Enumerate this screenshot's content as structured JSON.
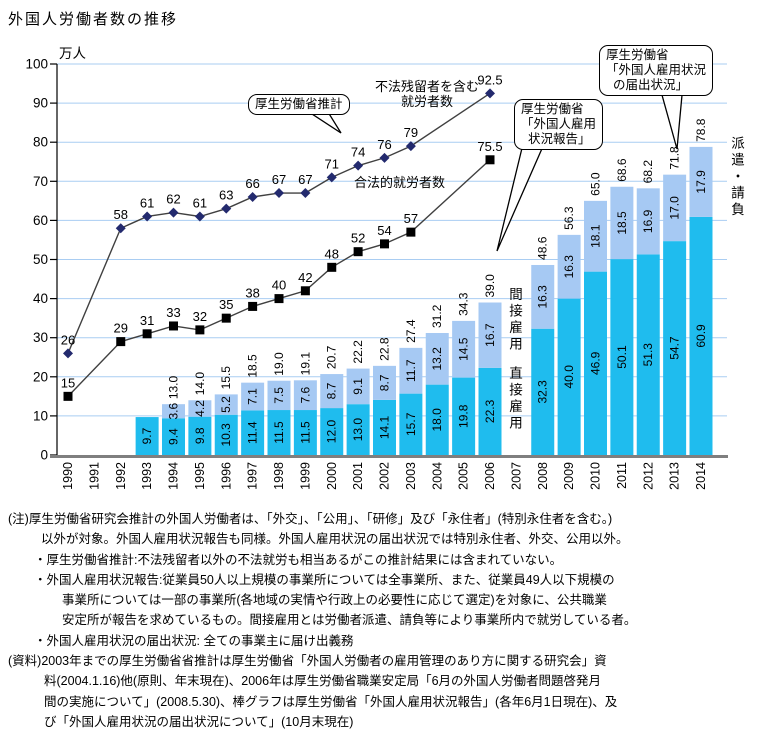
{
  "title": "外国人労働者数の推移",
  "chart_data": {
    "type": "combo-bar-line",
    "unit_label": "万人",
    "ylim": [
      0,
      100
    ],
    "ytick_step": 10,
    "grid": true,
    "years": [
      "1990",
      "1991",
      "1992",
      "1993",
      "1994",
      "1995",
      "1996",
      "1997",
      "1998",
      "1999",
      "2000",
      "2001",
      "2002",
      "2003",
      "2004",
      "2005",
      "2006",
      "2007",
      "2008",
      "2009",
      "2010",
      "2011",
      "2012",
      "2013",
      "2014"
    ],
    "colors": {
      "bar_bottom": "#1fbcee",
      "bar_top": "#a6c9f3",
      "gridline": "#a9cdf2",
      "axis": "#000000",
      "baseline": "#7f7f7f",
      "diamond": "#232a6e",
      "square": "#000000",
      "line": "#404040"
    },
    "line_series": [
      {
        "name": "不法残留者を含む就労者数",
        "marker": "diamond",
        "points": [
          [
            "1990",
            "26"
          ],
          [
            "1992",
            "58"
          ],
          [
            "1993",
            "61"
          ],
          [
            "1994",
            "62"
          ],
          [
            "1995",
            "61"
          ],
          [
            "1996",
            "63"
          ],
          [
            "1997",
            "66"
          ],
          [
            "1998",
            "67"
          ],
          [
            "1999",
            "67"
          ],
          [
            "2000",
            "71"
          ],
          [
            "2001",
            "74"
          ],
          [
            "2002",
            "76"
          ],
          [
            "2003",
            "79"
          ],
          [
            "2006",
            "92.5"
          ]
        ]
      },
      {
        "name": "合法的就労者数",
        "marker": "square",
        "points": [
          [
            "1990",
            "15"
          ],
          [
            "1992",
            "29"
          ],
          [
            "1993",
            "31"
          ],
          [
            "1994",
            "33"
          ],
          [
            "1995",
            "32"
          ],
          [
            "1996",
            "35"
          ],
          [
            "1997",
            "38"
          ],
          [
            "1998",
            "40"
          ],
          [
            "1999",
            "42"
          ],
          [
            "2000",
            "48"
          ],
          [
            "2001",
            "52"
          ],
          [
            "2002",
            "54"
          ],
          [
            "2003",
            "57"
          ],
          [
            "2006",
            "75.5"
          ]
        ]
      }
    ],
    "bar_series": {
      "bottom_name": "直接雇用",
      "top_name_pre2007": "間接雇用",
      "top_name_post2008": "派遣・請負",
      "items": [
        [
          "1993",
          "9.7",
          null,
          null
        ],
        [
          "1994",
          "9.4",
          "3.6",
          "13.0"
        ],
        [
          "1995",
          "9.8",
          "4.2",
          "14.0"
        ],
        [
          "1996",
          "10.3",
          "5.2",
          "15.5"
        ],
        [
          "1997",
          "11.4",
          "7.1",
          "18.5"
        ],
        [
          "1998",
          "11.5",
          "7.5",
          "19.0"
        ],
        [
          "1999",
          "11.5",
          "7.6",
          "19.1"
        ],
        [
          "2000",
          "12.0",
          "8.7",
          "20.7"
        ],
        [
          "2001",
          "13.0",
          "9.1",
          "22.2"
        ],
        [
          "2002",
          "14.1",
          "8.7",
          "22.8"
        ],
        [
          "2003",
          "15.7",
          "11.7",
          "27.4"
        ],
        [
          "2004",
          "18.0",
          "13.2",
          "31.2"
        ],
        [
          "2005",
          "19.8",
          "14.5",
          "34.3"
        ],
        [
          "2006",
          "22.3",
          "16.7",
          "39.0"
        ],
        [
          "2008",
          "32.3",
          "16.3",
          "48.6"
        ],
        [
          "2009",
          "40.0",
          "16.3",
          "56.3"
        ],
        [
          "2010",
          "46.9",
          "18.1",
          "65.0"
        ],
        [
          "2011",
          "50.1",
          "18.5",
          "68.6"
        ],
        [
          "2012",
          "51.3",
          "16.9",
          "68.2"
        ],
        [
          "2013",
          "54.7",
          "17.0",
          "71.8"
        ],
        [
          "2014",
          "60.9",
          "17.9",
          "78.8"
        ]
      ]
    }
  },
  "annotations": {
    "line1_label": "不法残留者を含む\n就労者数",
    "line2_label": "合法的就労者数",
    "callout_estimate": "厚生労働省推計",
    "callout_houkoku": "厚生労働省\n「外国人雇用\n  状況報告」",
    "callout_todokede": "厚生労働省\n「外国人雇用状況\n  の届出状況」",
    "right_label": "派遣・請負",
    "indirect_label": "間接雇用",
    "direct_label": "直接雇用"
  },
  "notes": [
    {
      "indent": 0,
      "text": "(注)厚生労働省研究会推計の外国人労働者は、「外交」、「公用」、「研修」及び「永住者」(特別永住者を含む。)"
    },
    {
      "indent": 1,
      "text": "以外が対象。外国人雇用状況報告も同様。外国人雇用状況の届出状況では特別永住者、外交、公用以外。"
    },
    {
      "indent": 2,
      "text": "・厚生労働省推計:不法残留者以外の不法就労も相当あるがこの推計結果には含まれていない。"
    },
    {
      "indent": 2,
      "text": "・外国人雇用状況報告:従業員50人以上規模の事業所については全事業所、また、従業員49人以下規模の"
    },
    {
      "indent": 3,
      "text": "事業所については一部の事業所(各地域の実情や行政上の必要性に応じて選定)を対象に、公共職業"
    },
    {
      "indent": 3,
      "text": "安定所が報告を求めているもの。間接雇用とは労働者派遣、請負等により事業所内で就労している者。"
    },
    {
      "indent": 2,
      "text": "・外国人雇用状況の届出状況: 全ての事業主に届け出義務"
    },
    {
      "indent": 0,
      "text": "(資料)2003年までの厚生労働省省推計は厚生労働省「外国人労働者の雇用管理のあり方に関する研究会」資"
    },
    {
      "indent": 4,
      "text": "料(2004.1.16)他(原則、年末現在)、2006年は厚生労働省職業安定局「6月の外国人労働者問題啓発月"
    },
    {
      "indent": 4,
      "text": "間の実施について」(2008.5.30)、棒グラフは厚生労働省「外国人雇用状況報告」(各年6月1日現在)、及"
    },
    {
      "indent": 4,
      "text": "び「外国人雇用状況の届出状況について」(10月末現在)"
    }
  ]
}
